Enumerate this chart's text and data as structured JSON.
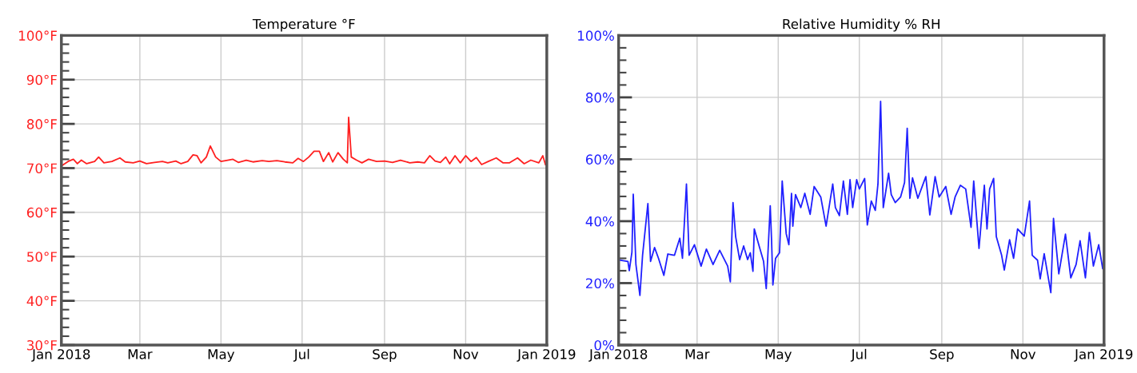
{
  "chart_data": [
    {
      "type": "line",
      "title": "Temperature °F",
      "xlim": [
        "2018-01-01",
        "2019-01-01"
      ],
      "xticks": [
        {
          "value": "2018-01-01",
          "label": "Jan 2018"
        },
        {
          "value": "2018-03-01",
          "label": "Mar"
        },
        {
          "value": "2018-05-01",
          "label": "May"
        },
        {
          "value": "2018-07-01",
          "label": "Jul"
        },
        {
          "value": "2018-09-01",
          "label": "Sep"
        },
        {
          "value": "2018-11-01",
          "label": "Nov"
        },
        {
          "value": "2019-01-01",
          "label": "Jan 2019"
        }
      ],
      "ylim": [
        30,
        100
      ],
      "yticks": [
        {
          "value": 30,
          "label": "30°F"
        },
        {
          "value": 40,
          "label": "40°F"
        },
        {
          "value": 50,
          "label": "50°F"
        },
        {
          "value": 60,
          "label": "60°F"
        },
        {
          "value": 70,
          "label": "70°F"
        },
        {
          "value": 80,
          "label": "80°F"
        },
        {
          "value": 90,
          "label": "90°F"
        },
        {
          "value": 100,
          "label": "100°F"
        }
      ],
      "grid": true,
      "marker": "none",
      "line_style": "solid",
      "series": [
        {
          "color": "#ff2020",
          "x": [
            "2018-01-01",
            "2018-01-06",
            "2018-01-10",
            "2018-01-13",
            "2018-01-16",
            "2018-01-20",
            "2018-01-26",
            "2018-01-29",
            "2018-02-02",
            "2018-02-08",
            "2018-02-14",
            "2018-02-18",
            "2018-02-24",
            "2018-03-01",
            "2018-03-06",
            "2018-03-12",
            "2018-03-18",
            "2018-03-22",
            "2018-03-28",
            "2018-04-01",
            "2018-04-06",
            "2018-04-10",
            "2018-04-13",
            "2018-04-16",
            "2018-04-20",
            "2018-04-23",
            "2018-04-27",
            "2018-05-01",
            "2018-05-06",
            "2018-05-10",
            "2018-05-14",
            "2018-05-20",
            "2018-05-25",
            "2018-06-01",
            "2018-06-06",
            "2018-06-12",
            "2018-06-18",
            "2018-06-24",
            "2018-06-28",
            "2018-07-02",
            "2018-07-06",
            "2018-07-10",
            "2018-07-14",
            "2018-07-17",
            "2018-07-21",
            "2018-07-24",
            "2018-07-28",
            "2018-08-01",
            "2018-08-04",
            "2018-08-05",
            "2018-08-07",
            "2018-08-11",
            "2018-08-15",
            "2018-08-20",
            "2018-08-26",
            "2018-09-01",
            "2018-09-07",
            "2018-09-13",
            "2018-09-20",
            "2018-09-26",
            "2018-10-01",
            "2018-10-05",
            "2018-10-09",
            "2018-10-13",
            "2018-10-17",
            "2018-10-20",
            "2018-10-24",
            "2018-10-28",
            "2018-11-01",
            "2018-11-05",
            "2018-11-09",
            "2018-11-13",
            "2018-11-18",
            "2018-11-24",
            "2018-11-29",
            "2018-12-04",
            "2018-12-10",
            "2018-12-15",
            "2018-12-20",
            "2018-12-26",
            "2018-12-29",
            "2018-12-31"
          ],
          "values": [
            70.5,
            71.5,
            72,
            71,
            71.8,
            71,
            71.5,
            72.5,
            71.2,
            71.5,
            72.3,
            71.4,
            71.2,
            71.6,
            71,
            71.3,
            71.5,
            71.2,
            71.6,
            71,
            71.5,
            73,
            72.8,
            71.2,
            72.5,
            75,
            72.5,
            71.5,
            71.8,
            72,
            71.3,
            71.8,
            71.4,
            71.7,
            71.5,
            71.7,
            71.4,
            71.2,
            72.2,
            71.5,
            72.5,
            73.8,
            73.8,
            71.5,
            73.5,
            71.4,
            73.5,
            72,
            71.2,
            81.5,
            72.5,
            71.8,
            71.2,
            72,
            71.5,
            71.6,
            71.3,
            71.8,
            71.2,
            71.4,
            71.2,
            72.8,
            71.6,
            71.3,
            72.5,
            71,
            72.8,
            71.2,
            72.8,
            71.5,
            72.4,
            70.8,
            71.5,
            72.3,
            71.2,
            71.2,
            72.3,
            71,
            71.8,
            71.2,
            72.8,
            70.8
          ]
        }
      ]
    },
    {
      "type": "line",
      "title": "Relative Humidity % RH",
      "xlim": [
        "2018-01-01",
        "2019-01-01"
      ],
      "xticks": [
        {
          "value": "2018-01-01",
          "label": "Jan 2018"
        },
        {
          "value": "2018-03-01",
          "label": "Mar"
        },
        {
          "value": "2018-05-01",
          "label": "May"
        },
        {
          "value": "2018-07-01",
          "label": "Jul"
        },
        {
          "value": "2018-09-01",
          "label": "Sep"
        },
        {
          "value": "2018-11-01",
          "label": "Nov"
        },
        {
          "value": "2019-01-01",
          "label": "Jan 2019"
        }
      ],
      "ylim": [
        0,
        100
      ],
      "yticks": [
        {
          "value": 0,
          "label": "0%"
        },
        {
          "value": 20,
          "label": "20%"
        },
        {
          "value": 40,
          "label": "40%"
        },
        {
          "value": 60,
          "label": "60%"
        },
        {
          "value": 80,
          "label": "80%"
        },
        {
          "value": 100,
          "label": "100%"
        }
      ],
      "grid": true,
      "marker": "none",
      "line_style": "solid",
      "series": [
        {
          "color": "#2020ff",
          "x": [
            "2018-01-01",
            "2018-01-08",
            "2018-01-09",
            "2018-01-11",
            "2018-01-12",
            "2018-01-14",
            "2018-01-17",
            "2018-01-19",
            "2018-01-23",
            "2018-01-25",
            "2018-01-28",
            "2018-01-31",
            "2018-02-04",
            "2018-02-07",
            "2018-02-12",
            "2018-02-16",
            "2018-02-18",
            "2018-02-21",
            "2018-02-23",
            "2018-02-27",
            "2018-03-04",
            "2018-03-08",
            "2018-03-13",
            "2018-03-18",
            "2018-03-24",
            "2018-03-26",
            "2018-03-28",
            "2018-03-30",
            "2018-04-02",
            "2018-04-05",
            "2018-04-08",
            "2018-04-10",
            "2018-04-12",
            "2018-04-13",
            "2018-04-17",
            "2018-04-20",
            "2018-04-22",
            "2018-04-25",
            "2018-04-26",
            "2018-04-27",
            "2018-04-29",
            "2018-05-02",
            "2018-05-04",
            "2018-05-07",
            "2018-05-09",
            "2018-05-11",
            "2018-05-12",
            "2018-05-14",
            "2018-05-18",
            "2018-05-21",
            "2018-05-25",
            "2018-05-28",
            "2018-06-02",
            "2018-06-06",
            "2018-06-11",
            "2018-06-13",
            "2018-06-16",
            "2018-06-19",
            "2018-06-22",
            "2018-06-24",
            "2018-06-26",
            "2018-06-29",
            "2018-07-01",
            "2018-07-05",
            "2018-07-07",
            "2018-07-10",
            "2018-07-13",
            "2018-07-15",
            "2018-07-17",
            "2018-07-19",
            "2018-07-23",
            "2018-07-25",
            "2018-07-28",
            "2018-08-01",
            "2018-08-04",
            "2018-08-06",
            "2018-08-08",
            "2018-08-10",
            "2018-08-14",
            "2018-08-20",
            "2018-08-23",
            "2018-08-27",
            "2018-08-30",
            "2018-09-04",
            "2018-09-08",
            "2018-09-11",
            "2018-09-15",
            "2018-09-19",
            "2018-09-23",
            "2018-09-25",
            "2018-09-29",
            "2018-10-03",
            "2018-10-05",
            "2018-10-07",
            "2018-10-10",
            "2018-10-12",
            "2018-10-16",
            "2018-10-18",
            "2018-10-22",
            "2018-10-25",
            "2018-10-28",
            "2018-11-02",
            "2018-11-06",
            "2018-11-08",
            "2018-11-12",
            "2018-11-14",
            "2018-11-17",
            "2018-11-22",
            "2018-11-24",
            "2018-11-28",
            "2018-12-03",
            "2018-12-07",
            "2018-12-11",
            "2018-12-14",
            "2018-12-18",
            "2018-12-21",
            "2018-12-24",
            "2018-12-28",
            "2018-12-31"
          ],
          "values": [
            27.5,
            27,
            24,
            30,
            48.7,
            26,
            16,
            29,
            45.7,
            27,
            31.5,
            28,
            22.5,
            29.4,
            29,
            34.5,
            28,
            52,
            29,
            32.4,
            25.5,
            31,
            26,
            30.6,
            25.5,
            20.4,
            46,
            35,
            27.6,
            32,
            27.6,
            29.8,
            23.8,
            37.5,
            31.5,
            27,
            18.2,
            45,
            34,
            19.4,
            28,
            29.8,
            53,
            36,
            32.4,
            49,
            38.4,
            48.6,
            44.4,
            49,
            42.2,
            51.2,
            47.8,
            38.4,
            52,
            44.4,
            41.8,
            53,
            42.2,
            53.4,
            44.4,
            53.4,
            50.4,
            53.8,
            38.8,
            46.5,
            43.5,
            52,
            78.7,
            44.4,
            55.5,
            48.6,
            46,
            47.8,
            52.5,
            70,
            47.4,
            54,
            47.4,
            54.4,
            42,
            54.4,
            47.8,
            51.2,
            42.2,
            47.8,
            51.6,
            50.4,
            38,
            53,
            31.2,
            51.6,
            37.5,
            50.4,
            53.8,
            35,
            29,
            24.2,
            34,
            28,
            37.5,
            35.2,
            46.5,
            29,
            27.4,
            21.4,
            29.5,
            16.9,
            40.9,
            23,
            35.8,
            21.7,
            26,
            33.7,
            21.7,
            36.3,
            25.5,
            32.4,
            24.7
          ]
        }
      ]
    }
  ]
}
